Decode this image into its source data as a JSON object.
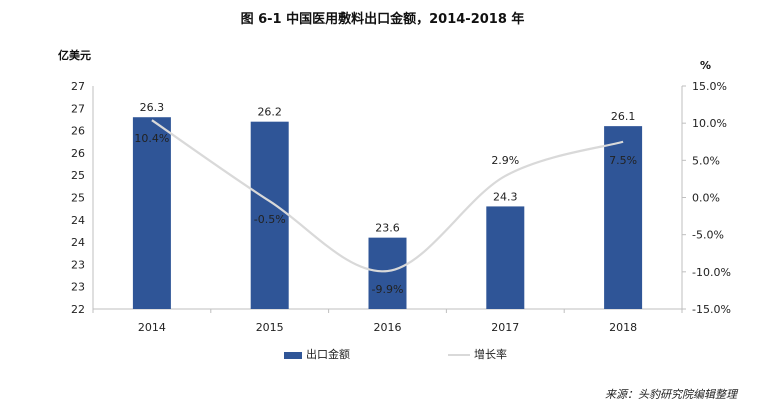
{
  "chart_data": {
    "type": "bar",
    "title": "图 6-1 中国医用敷料出口金额，2014-2018 年",
    "categories": [
      "2014",
      "2015",
      "2016",
      "2017",
      "2018"
    ],
    "series": [
      {
        "name": "出口金额",
        "type": "bar",
        "axis": "left",
        "color": "#2f5597",
        "values": [
          26.3,
          26.2,
          23.6,
          24.3,
          26.1
        ]
      },
      {
        "name": "增长率",
        "type": "line",
        "axis": "right",
        "color": "#d9d9d9",
        "values": [
          10.4,
          -0.5,
          -9.9,
          2.9,
          7.5
        ]
      }
    ],
    "data_labels": {
      "bars": [
        "26.3",
        "26.2",
        "23.6",
        "24.3",
        "26.1"
      ],
      "line": [
        "10.4%",
        "-0.5%",
        "-9.9%",
        "2.9%",
        "7.5%"
      ]
    },
    "left_axis": {
      "unit": "亿美元",
      "tick_values": [
        22,
        22.5,
        23,
        23.5,
        24,
        24.5,
        25,
        25.5,
        26,
        26.5,
        27
      ],
      "tick_labels": [
        "22",
        "23",
        "23",
        "24",
        "24",
        "25",
        "25",
        "26",
        "26",
        "27",
        "27"
      ],
      "ylim": [
        22,
        27
      ]
    },
    "right_axis": {
      "unit": "%",
      "tick_values": [
        -15,
        -10,
        -5,
        0,
        5,
        10,
        15
      ],
      "tick_labels": [
        "-15.0%",
        "-10.0%",
        "-5.0%",
        "0.0%",
        "5.0%",
        "10.0%",
        "15.0%"
      ],
      "ylim": [
        -15,
        15
      ]
    },
    "legend": {
      "position": "bottom",
      "entries": [
        "出口金额",
        "增长率"
      ]
    },
    "grid": false
  },
  "source": "来源：头豹研究院编辑整理"
}
